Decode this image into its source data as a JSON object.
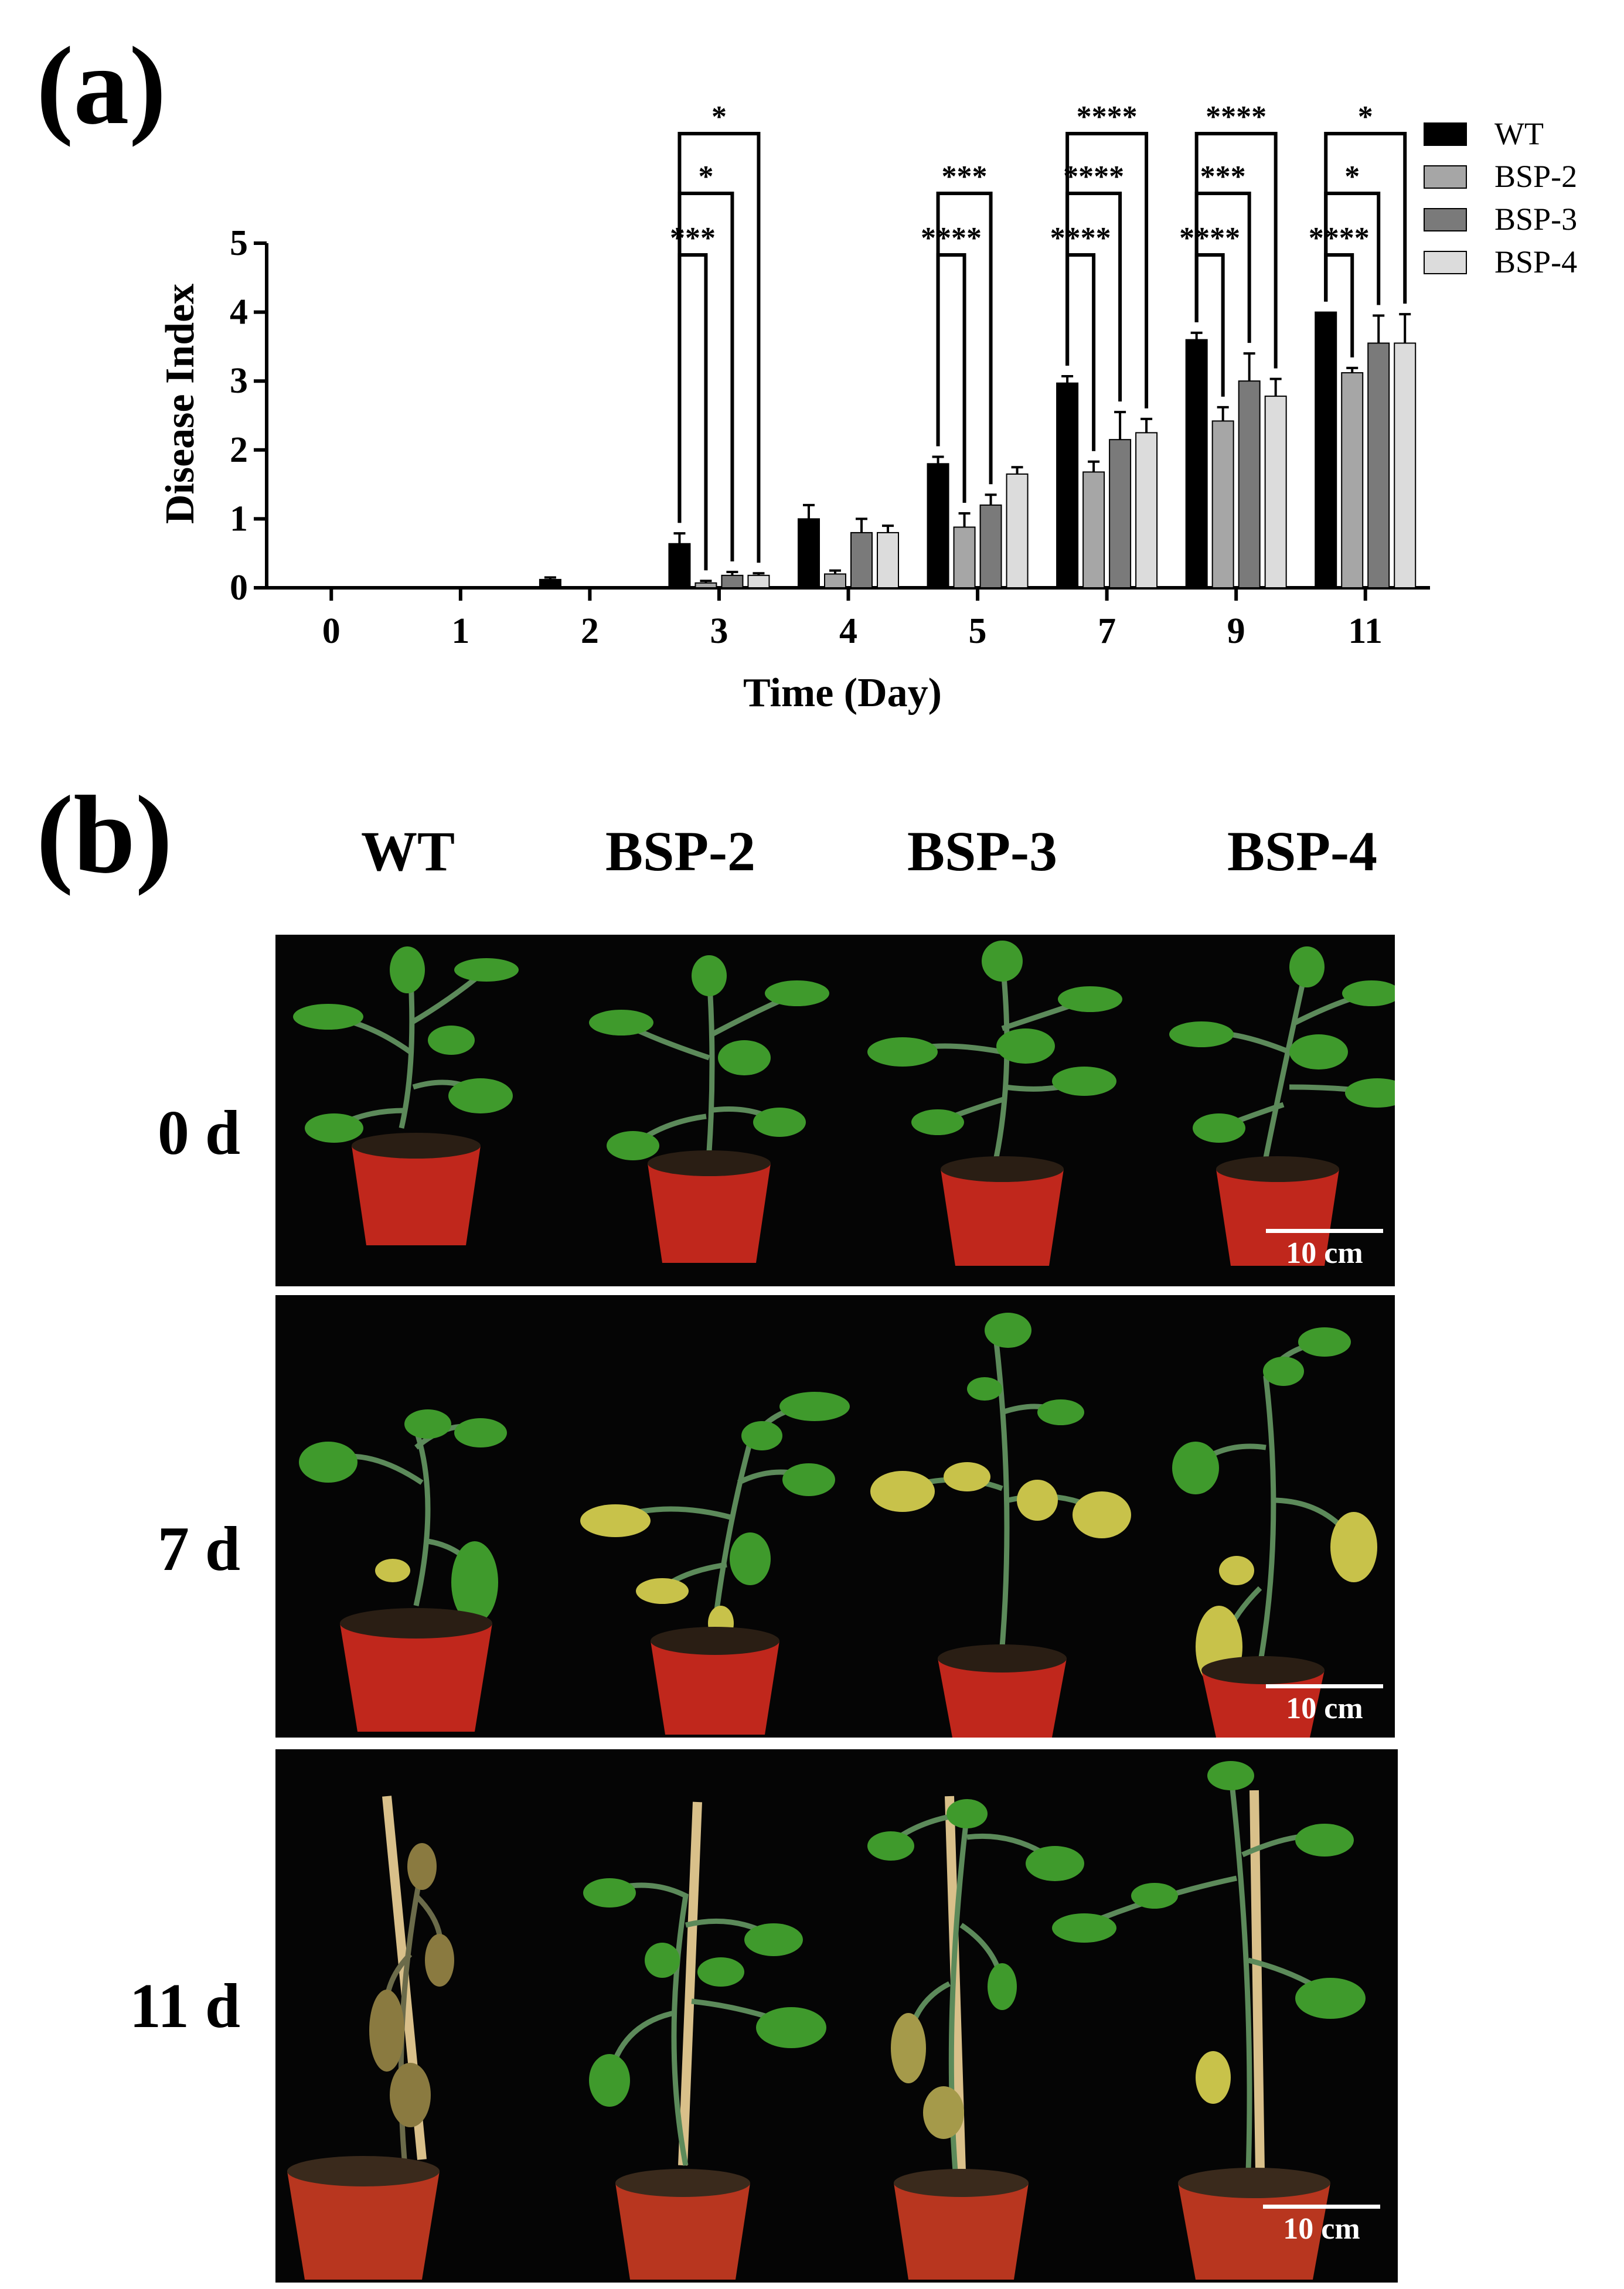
{
  "panels": {
    "a": "(a)",
    "b": "(b)"
  },
  "chart_data": {
    "type": "bar",
    "xlabel": "Time (Day)",
    "ylabel": "Disease Index",
    "ylim": [
      0,
      5
    ],
    "yticks": [
      "0",
      "1",
      "2",
      "3",
      "4",
      "5"
    ],
    "categories": [
      "0",
      "1",
      "2",
      "3",
      "4",
      "5",
      "7",
      "9",
      "11"
    ],
    "legend_position": "top-right",
    "grid": false,
    "series": [
      {
        "name": "WT",
        "color": "#000000",
        "values": [
          0,
          0,
          0.12,
          0.64,
          1.0,
          1.8,
          2.97,
          3.6,
          4.0
        ],
        "errors": [
          0,
          0,
          0.03,
          0.15,
          0.2,
          0.1,
          0.1,
          0.1,
          0
        ]
      },
      {
        "name": "BSP-2",
        "color": "#a6a6a6",
        "values": [
          0,
          0,
          0,
          0.07,
          0.2,
          0.88,
          1.68,
          2.42,
          3.12
        ],
        "errors": [
          0,
          0,
          0,
          0.03,
          0.05,
          0.2,
          0.15,
          0.2,
          0.07
        ]
      },
      {
        "name": "BSP-3",
        "color": "#7a7a7a",
        "values": [
          0,
          0,
          0,
          0.18,
          0.8,
          1.2,
          2.15,
          3.0,
          3.55
        ],
        "errors": [
          0,
          0,
          0,
          0.05,
          0.2,
          0.15,
          0.4,
          0.4,
          0.4
        ]
      },
      {
        "name": "BSP-4",
        "color": "#dcdcdc",
        "values": [
          0,
          0,
          0,
          0.18,
          0.8,
          1.65,
          2.25,
          2.78,
          3.55
        ],
        "errors": [
          0,
          0,
          0,
          0.03,
          0.1,
          0.1,
          0.2,
          0.25,
          0.42
        ]
      }
    ],
    "significance": [
      {
        "category": "3",
        "pairs": [
          {
            "compare": "BSP-2",
            "label": "***"
          },
          {
            "compare": "BSP-3",
            "label": "*"
          },
          {
            "compare": "BSP-4",
            "label": "*"
          }
        ]
      },
      {
        "category": "5",
        "pairs": [
          {
            "compare": "BSP-2",
            "label": "****"
          },
          {
            "compare": "BSP-3",
            "label": "***"
          }
        ]
      },
      {
        "category": "7",
        "pairs": [
          {
            "compare": "BSP-2",
            "label": "****"
          },
          {
            "compare": "BSP-3",
            "label": "****"
          },
          {
            "compare": "BSP-4",
            "label": "****"
          }
        ]
      },
      {
        "category": "9",
        "pairs": [
          {
            "compare": "BSP-2",
            "label": "****"
          },
          {
            "compare": "BSP-3",
            "label": "***"
          },
          {
            "compare": "BSP-4",
            "label": "****"
          }
        ]
      },
      {
        "category": "11",
        "pairs": [
          {
            "compare": "BSP-2",
            "label": "****"
          },
          {
            "compare": "BSP-3",
            "label": "*"
          },
          {
            "compare": "BSP-4",
            "label": "*"
          }
        ]
      }
    ]
  },
  "photos": {
    "columns": [
      "WT",
      "BSP-2",
      "BSP-3",
      "BSP-4"
    ],
    "rows": [
      "0 d",
      "7 d",
      "11 d"
    ],
    "scale_bar": "10 cm",
    "colors": {
      "background": "#050505",
      "pot": "#c0271c",
      "leaf": "#3f9a2c",
      "leaf_yellow": "#c8c24a",
      "leaf_dry": "#8a7a40",
      "stake": "#d9c08a",
      "scale": "#ffffff"
    }
  }
}
